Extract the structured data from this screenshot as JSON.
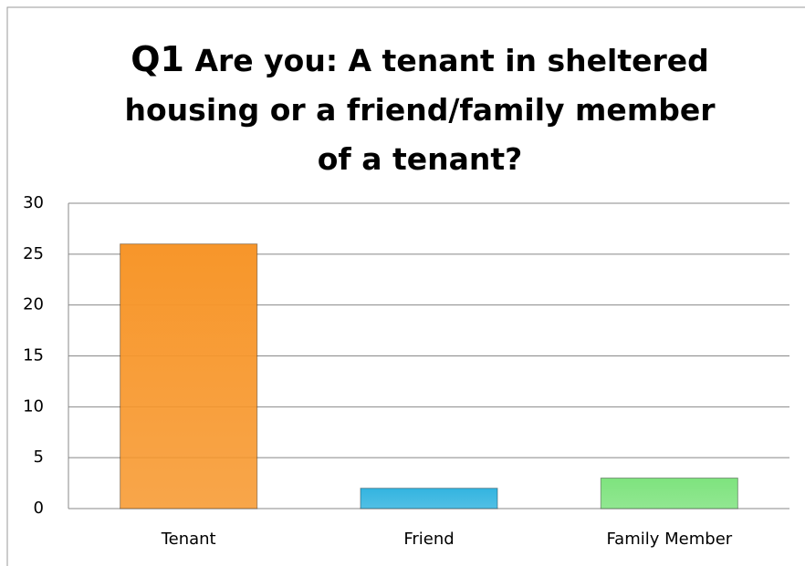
{
  "chart_data": {
    "type": "bar",
    "title": [
      "Q1",
      "Are you: A tenant in sheltered housing or a friend/family member of a tenant?"
    ],
    "categories": [
      "Tenant",
      "Friend",
      "Family Member"
    ],
    "values": [
      26,
      2,
      3
    ],
    "colors": [
      "#f7962a",
      "#33b4e0",
      "#7ee37e"
    ],
    "ylim": [
      0,
      30
    ],
    "yticks": [
      0,
      5,
      10,
      15,
      20,
      25,
      30
    ],
    "grid": true
  }
}
